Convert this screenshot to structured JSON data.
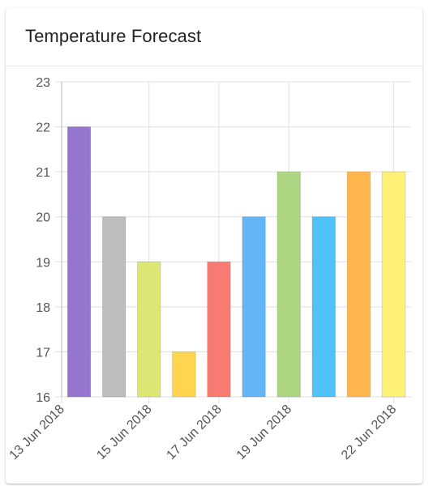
{
  "card": {
    "title": "Temperature Forecast"
  },
  "chart_data": {
    "type": "bar",
    "title": "Temperature Forecast",
    "xlabel": "",
    "ylabel": "",
    "x_axis_type": "time",
    "x": [
      "13 Jun 2018",
      "14 Jun 2018",
      "15 Jun 2018",
      "16 Jun 2018",
      "17 Jun 2018",
      "18 Jun 2018",
      "19 Jun 2018",
      "20 Jun 2018",
      "21 Jun 2018",
      "22 Jun 2018"
    ],
    "values": [
      22,
      20,
      19,
      17,
      19,
      20,
      21,
      20,
      21,
      21
    ],
    "bar_colors": [
      "#9575cd",
      "#bdbdbd",
      "#dce775",
      "#ffd54f",
      "#f77b72",
      "#64b5f6",
      "#aed581",
      "#4fc3f7",
      "#ffb74d",
      "#fff176"
    ],
    "x_tick_labels": [
      "13 Jun 2018",
      "15 Jun 2018",
      "17 Jun 2018",
      "19 Jun 2018",
      "22 Jun 2018"
    ],
    "x_tick_positions": [
      "13 Jun 2018",
      "15 Jun 2018",
      "17 Jun 2018",
      "19 Jun 2018",
      "22 Jun 2018"
    ],
    "x_gridlines": [
      "13 Jun 2018",
      "15 Jun 2018",
      "17 Jun 2018",
      "19 Jun 2018",
      "22 Jun 2018"
    ],
    "ylim": [
      16,
      23
    ],
    "y_ticks": [
      16,
      17,
      18,
      19,
      20,
      21,
      22,
      23
    ],
    "grid": true,
    "legend": "none"
  }
}
